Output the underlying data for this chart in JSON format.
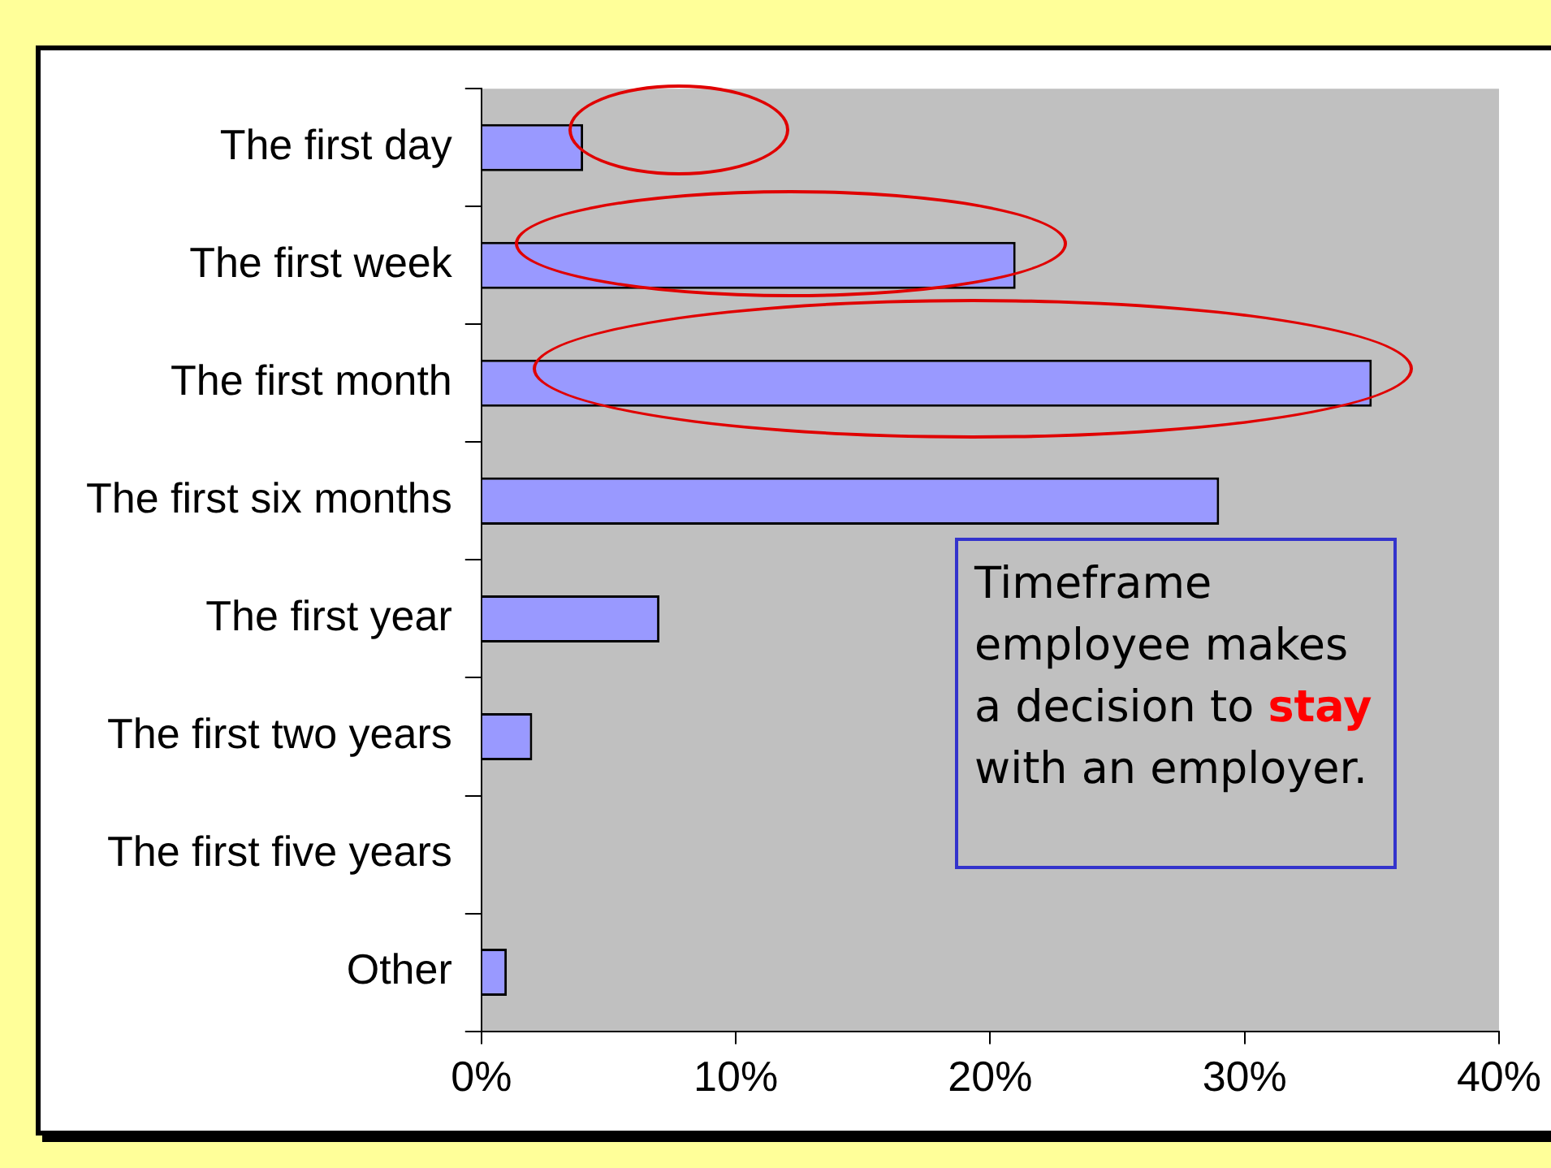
{
  "chart_data": {
    "type": "bar",
    "orientation": "horizontal",
    "categories": [
      "The first day",
      "The first week",
      "The first month",
      "The first six months",
      "The first year",
      "The first two years",
      "The first five years",
      "Other"
    ],
    "values": [
      4,
      21,
      35,
      29,
      7,
      2,
      0,
      1
    ],
    "color": "#9999ff",
    "xlim": [
      0,
      40
    ],
    "xticks": [
      {
        "value": 0,
        "label": "0%"
      },
      {
        "value": 10,
        "label": "10%"
      },
      {
        "value": 20,
        "label": "20%"
      },
      {
        "value": 30,
        "label": "30%"
      },
      {
        "value": 40,
        "label": "40%"
      }
    ],
    "grid": false,
    "legend": false,
    "annotations": [
      "Timeframe employee makes a decision to",
      "stay",
      "with an employer."
    ]
  }
}
